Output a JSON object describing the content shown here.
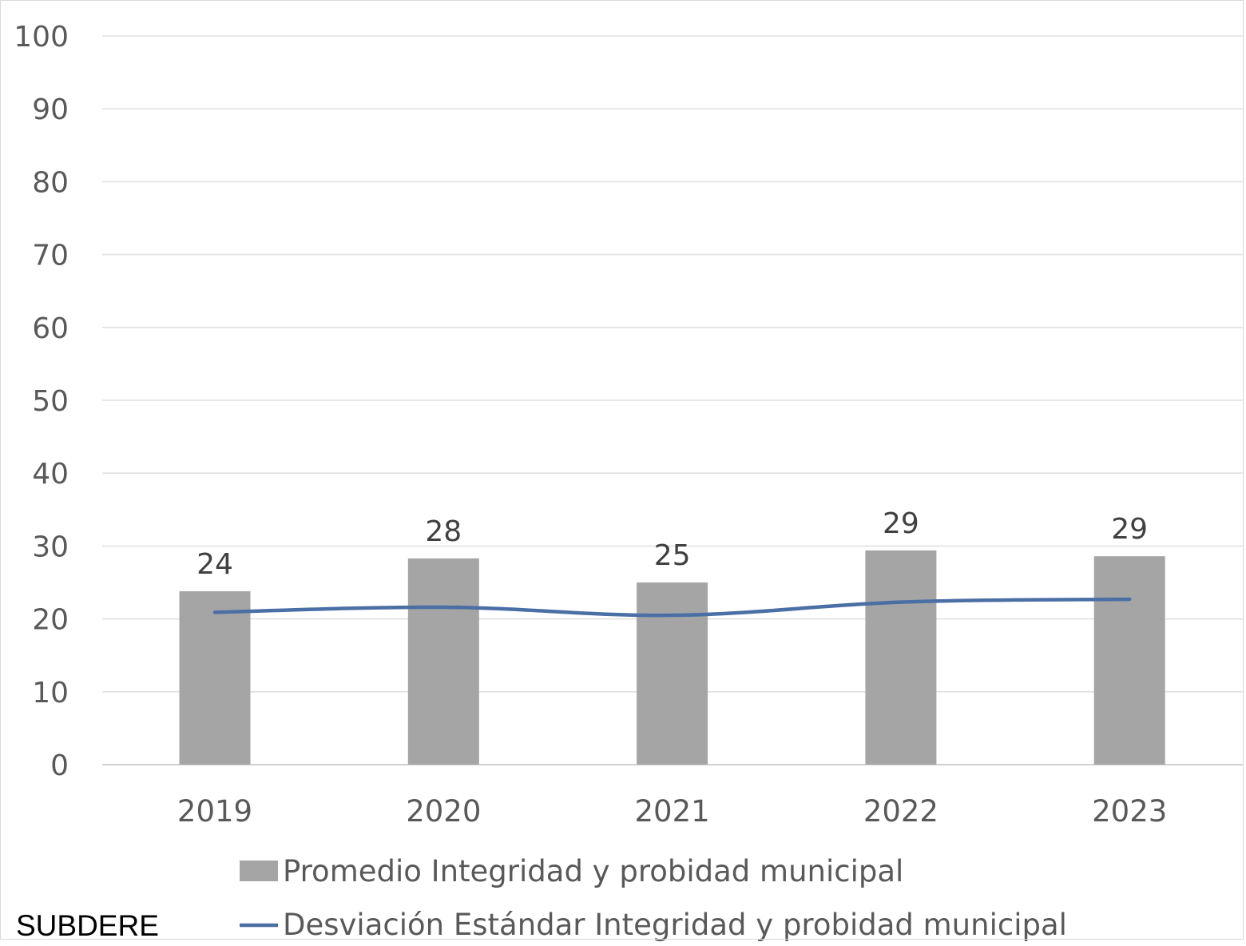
{
  "chart_data": {
    "type": "bar",
    "categories": [
      "2019",
      "2020",
      "2021",
      "2022",
      "2023"
    ],
    "series": [
      {
        "name": "Promedio Integridad y probidad municipal",
        "kind": "bar",
        "values": [
          23.8,
          28.3,
          25.0,
          29.4,
          28.6
        ],
        "labels": [
          "24",
          "28",
          "25",
          "29",
          "29"
        ],
        "color": "#a5a5a5"
      },
      {
        "name": "Desviación Estándar Integridad y probidad municipal",
        "kind": "line",
        "values": [
          20.9,
          21.6,
          20.5,
          22.3,
          22.7
        ],
        "color": "#4a6fa5"
      }
    ],
    "ylim": [
      0,
      100
    ],
    "yticks": [
      0,
      10,
      20,
      30,
      40,
      50,
      60,
      70,
      80,
      90,
      100
    ],
    "grid": true,
    "legend_position": "bottom"
  },
  "source_text": "SUBDERE"
}
